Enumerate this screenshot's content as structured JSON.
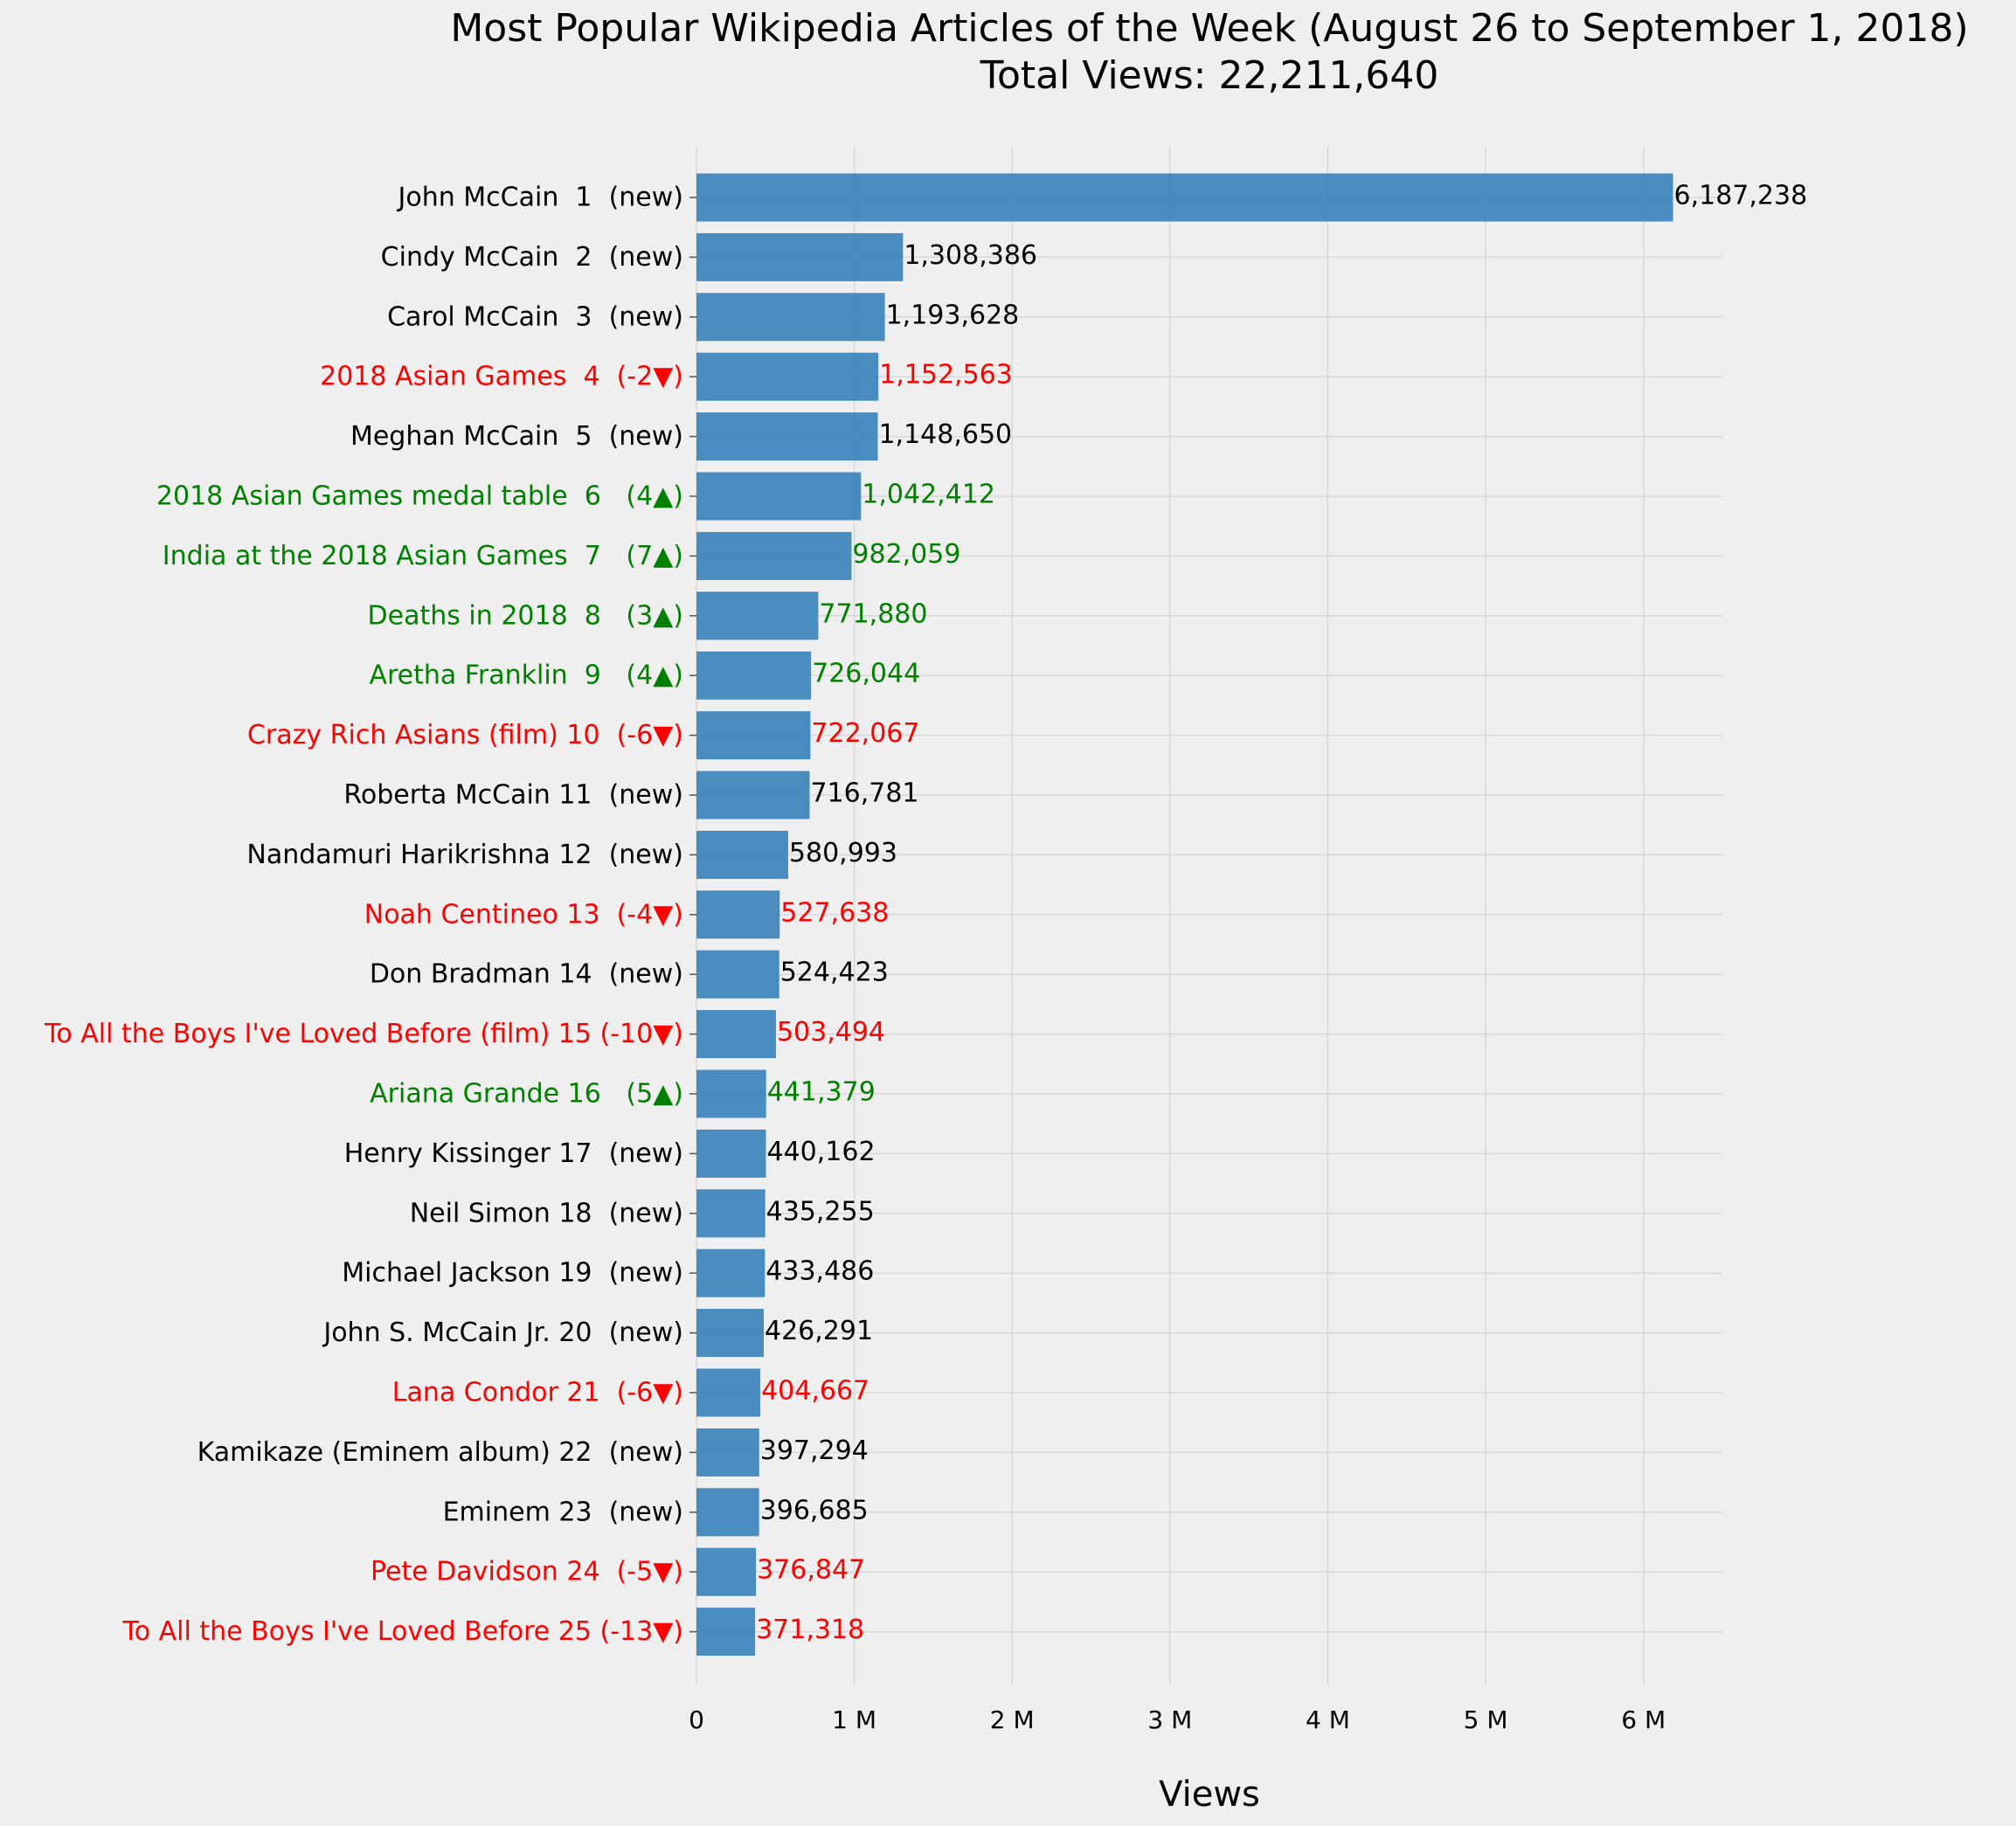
{
  "chart_data": {
    "type": "bar",
    "orientation": "horizontal",
    "title": "Most Popular Wikipedia Articles of the Week (August 26 to September 1, 2018)",
    "subtitle": "Total Views: 22,211,640",
    "xlabel": "Views",
    "ylabel": "",
    "xlim": [
      0,
      6500000
    ],
    "x_ticks": [
      {
        "value": 0,
        "label": "0"
      },
      {
        "value": 1000000,
        "label": "1 M"
      },
      {
        "value": 2000000,
        "label": "2 M"
      },
      {
        "value": 3000000,
        "label": "3 M"
      },
      {
        "value": 4000000,
        "label": "4 M"
      },
      {
        "value": 5000000,
        "label": "5 M"
      },
      {
        "value": 6000000,
        "label": "6 M"
      }
    ],
    "grid": true,
    "bar_color": "#3f87bd",
    "status_colors": {
      "new": "#000000",
      "up": "#008000",
      "down": "#ff0000"
    },
    "categories": [
      {
        "label": "John McCain  1  (new)",
        "value": 6187238,
        "value_label": "6,187,238",
        "status": "new"
      },
      {
        "label": "Cindy McCain  2  (new)",
        "value": 1308386,
        "value_label": "1,308,386",
        "status": "new"
      },
      {
        "label": "Carol McCain  3  (new)",
        "value": 1193628,
        "value_label": "1,193,628",
        "status": "new"
      },
      {
        "label": "2018 Asian Games  4  (-2▼)",
        "value": 1152563,
        "value_label": "1,152,563",
        "status": "down"
      },
      {
        "label": "Meghan McCain  5  (new)",
        "value": 1148650,
        "value_label": "1,148,650",
        "status": "new"
      },
      {
        "label": "2018 Asian Games medal table  6   (4▲)",
        "value": 1042412,
        "value_label": "1,042,412",
        "status": "up"
      },
      {
        "label": "India at the 2018 Asian Games  7   (7▲)",
        "value": 982059,
        "value_label": "982,059",
        "status": "up"
      },
      {
        "label": "Deaths in 2018  8   (3▲)",
        "value": 771880,
        "value_label": "771,880",
        "status": "up"
      },
      {
        "label": "Aretha Franklin  9   (4▲)",
        "value": 726044,
        "value_label": "726,044",
        "status": "up"
      },
      {
        "label": "Crazy Rich Asians (film) 10  (-6▼)",
        "value": 722067,
        "value_label": "722,067",
        "status": "down"
      },
      {
        "label": "Roberta McCain 11  (new)",
        "value": 716781,
        "value_label": "716,781",
        "status": "new"
      },
      {
        "label": "Nandamuri Harikrishna 12  (new)",
        "value": 580993,
        "value_label": "580,993",
        "status": "new"
      },
      {
        "label": "Noah Centineo 13  (-4▼)",
        "value": 527638,
        "value_label": "527,638",
        "status": "down"
      },
      {
        "label": "Don Bradman 14  (new)",
        "value": 524423,
        "value_label": "524,423",
        "status": "new"
      },
      {
        "label": "To All the Boys I've Loved Before (film) 15 (-10▼)",
        "value": 503494,
        "value_label": "503,494",
        "status": "down"
      },
      {
        "label": "Ariana Grande 16   (5▲)",
        "value": 441379,
        "value_label": "441,379",
        "status": "up"
      },
      {
        "label": "Henry Kissinger 17  (new)",
        "value": 440162,
        "value_label": "440,162",
        "status": "new"
      },
      {
        "label": "Neil Simon 18  (new)",
        "value": 435255,
        "value_label": "435,255",
        "status": "new"
      },
      {
        "label": "Michael Jackson 19  (new)",
        "value": 433486,
        "value_label": "433,486",
        "status": "new"
      },
      {
        "label": "John S. McCain Jr. 20  (new)",
        "value": 426291,
        "value_label": "426,291",
        "status": "new"
      },
      {
        "label": "Lana Condor 21  (-6▼)",
        "value": 404667,
        "value_label": "404,667",
        "status": "down"
      },
      {
        "label": "Kamikaze (Eminem album) 22  (new)",
        "value": 397294,
        "value_label": "397,294",
        "status": "new"
      },
      {
        "label": "Eminem 23  (new)",
        "value": 396685,
        "value_label": "396,685",
        "status": "new"
      },
      {
        "label": "Pete Davidson 24  (-5▼)",
        "value": 376847,
        "value_label": "376,847",
        "status": "down"
      },
      {
        "label": "To All the Boys I've Loved Before 25 (-13▼)",
        "value": 371318,
        "value_label": "371,318",
        "status": "down"
      }
    ]
  }
}
